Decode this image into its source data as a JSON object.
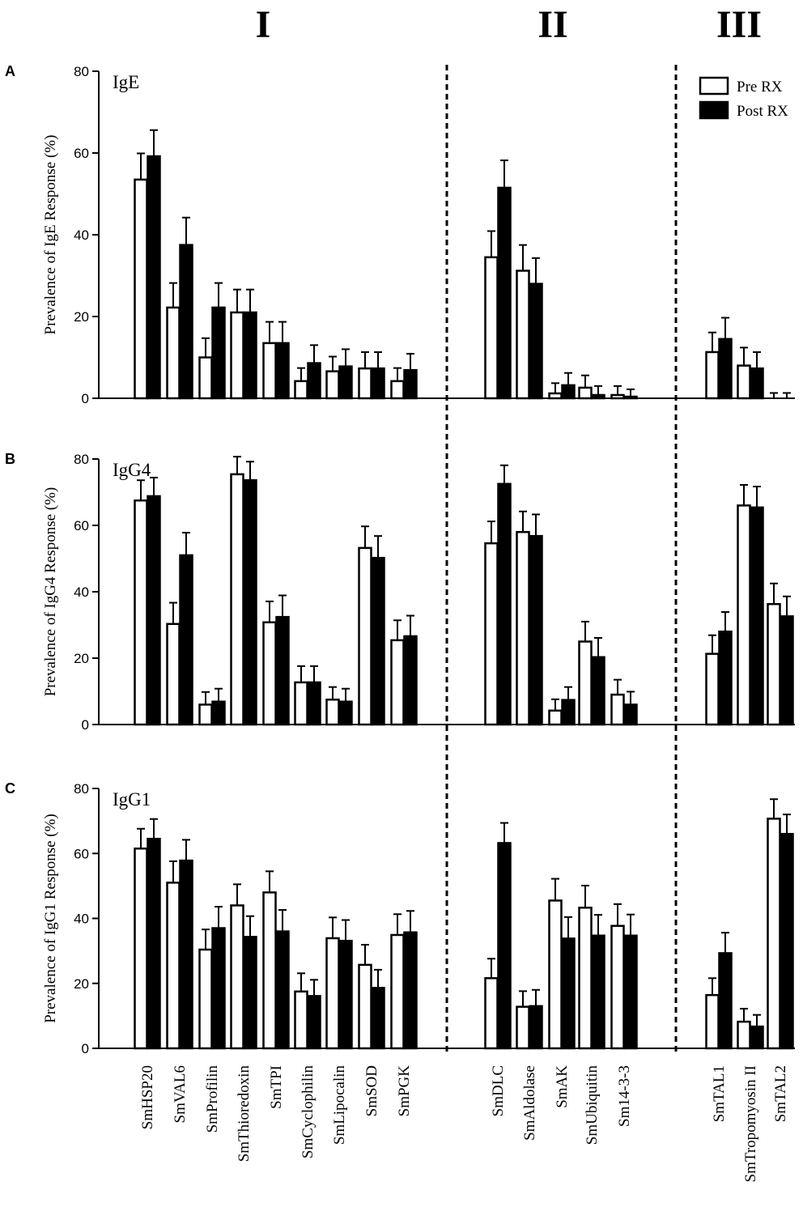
{
  "chart_data": {
    "type": "bar",
    "groups": [
      {
        "label": "I",
        "categories": [
          "SmHSP20",
          "SmVAL6",
          "SmProfilin",
          "SmThioredoxin",
          "SmTPI",
          "SmCyclophilin",
          "SmLipocalin",
          "SmSOD",
          "SmPGK"
        ]
      },
      {
        "label": "II",
        "categories": [
          "SmDLC",
          "SmAldolase",
          "SmAK",
          "SmUbiquitin",
          "Sm14-3-3"
        ]
      },
      {
        "label": "III",
        "categories": [
          "SmTAL1",
          "SmTropomyosin II",
          "SmTAL2"
        ]
      }
    ],
    "legend": [
      {
        "name": "Pre RX",
        "fill": "#ffffff"
      },
      {
        "name": "Post RX",
        "fill": "#000000"
      }
    ],
    "legend_placement": "top-right",
    "panels": [
      {
        "letter": "A",
        "label": "IgE",
        "ylabel": "Prevalence of IgE Response (%)",
        "ylim": [
          0,
          80
        ],
        "yticks": [
          "0",
          "20",
          "40",
          "60",
          "80"
        ],
        "series": [
          {
            "name": "Pre RX",
            "values": [
              53.5,
              22.2,
              10.0,
              21.0,
              13.5,
              4.2,
              6.6,
              7.3,
              4.2,
              34.5,
              31.2,
              1.2,
              2.6,
              0.8,
              11.3,
              8.0,
              0.0
            ],
            "errors": [
              6.4,
              6.0,
              4.7,
              5.6,
              5.2,
              3.2,
              3.6,
              4.0,
              3.2,
              6.4,
              6.3,
              2.5,
              3.0,
              2.2,
              4.8,
              4.4,
              1.3
            ]
          },
          {
            "name": "Post RX",
            "values": [
              59.2,
              37.5,
              22.2,
              21.0,
              13.5,
              8.6,
              7.8,
              7.3,
              6.9,
              51.5,
              28.0,
              3.2,
              0.8,
              0.4,
              14.5,
              7.3,
              0.0
            ],
            "errors": [
              6.4,
              6.7,
              6.0,
              5.6,
              5.2,
              4.4,
              4.2,
              4.0,
              4.0,
              6.7,
              6.3,
              3.0,
              2.2,
              1.8,
              5.2,
              4.0,
              1.3
            ]
          }
        ]
      },
      {
        "letter": "B",
        "label": "IgG4",
        "ylabel": "Prevalence of IgG4 Response (%)",
        "ylim": [
          0,
          80
        ],
        "yticks": [
          "0",
          "20",
          "40",
          "60",
          "80"
        ],
        "series": [
          {
            "name": "Pre RX",
            "values": [
              67.5,
              30.3,
              6.0,
              75.4,
              30.8,
              12.7,
              7.5,
              53.2,
              25.4,
              54.6,
              58.0,
              4.2,
              25.0,
              9.0,
              21.3,
              66.0,
              36.3
            ],
            "errors": [
              6.1,
              6.4,
              3.8,
              5.3,
              6.3,
              4.9,
              3.8,
              6.5,
              6.0,
              6.6,
              6.2,
              3.4,
              6.0,
              4.5,
              5.6,
              6.2,
              6.2
            ]
          },
          {
            "name": "Post RX",
            "values": [
              68.8,
              51.0,
              6.9,
              73.6,
              32.4,
              12.7,
              6.9,
              50.2,
              26.6,
              72.5,
              56.8,
              7.4,
              20.3,
              6.0,
              28.0,
              65.4,
              32.6
            ],
            "errors": [
              5.6,
              6.8,
              3.9,
              5.6,
              6.5,
              4.9,
              3.9,
              6.6,
              6.2,
              5.6,
              6.5,
              3.9,
              5.8,
              3.9,
              5.9,
              6.3,
              6.0
            ]
          }
        ]
      },
      {
        "letter": "C",
        "label": "IgG1",
        "ylabel": "Prevalence of IgG1 Response (%)",
        "ylim": [
          0,
          80
        ],
        "yticks": [
          "0",
          "20",
          "40",
          "60",
          "80"
        ],
        "series": [
          {
            "name": "Pre RX",
            "values": [
              61.5,
              51.0,
              30.4,
              44.0,
              48.0,
              17.5,
              33.9,
              25.7,
              34.9,
              21.6,
              12.8,
              45.5,
              43.3,
              37.7,
              16.4,
              8.2,
              70.7
            ],
            "errors": [
              6.1,
              6.6,
              6.2,
              6.5,
              6.5,
              5.6,
              6.4,
              6.2,
              6.4,
              6.0,
              4.8,
              6.7,
              6.8,
              6.7,
              5.2,
              4.0,
              6.0
            ]
          },
          {
            "name": "Post RX",
            "values": [
              64.5,
              57.8,
              37.0,
              34.3,
              36.0,
              16.1,
              33.1,
              18.6,
              35.7,
              63.2,
              13.0,
              33.8,
              34.7,
              34.7,
              29.3,
              6.7,
              66.0
            ],
            "errors": [
              6.1,
              6.4,
              6.6,
              6.4,
              6.6,
              5.0,
              6.4,
              5.6,
              6.6,
              6.2,
              5.0,
              6.6,
              6.4,
              6.5,
              6.3,
              3.6,
              6.0
            ]
          }
        ]
      }
    ]
  }
}
